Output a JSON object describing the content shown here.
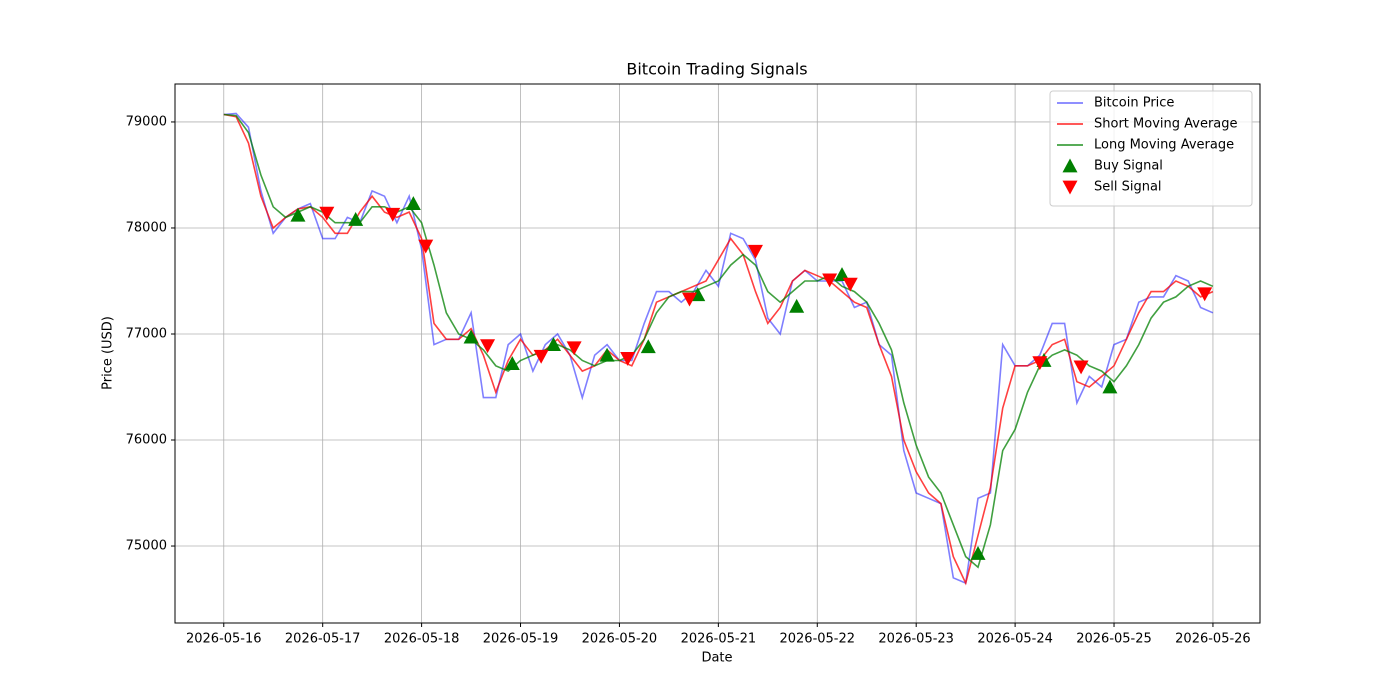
{
  "chart_data": {
    "type": "line",
    "title": "Bitcoin Trading Signals",
    "xlabel": "Date",
    "ylabel": "Price (USD)",
    "x": [
      "2026-05-16 00:00",
      "2026-05-16 03:00",
      "2026-05-16 06:00",
      "2026-05-16 09:00",
      "2026-05-16 12:00",
      "2026-05-16 15:00",
      "2026-05-16 18:00",
      "2026-05-16 21:00",
      "2026-05-17 00:00",
      "2026-05-17 03:00",
      "2026-05-17 06:00",
      "2026-05-17 09:00",
      "2026-05-17 12:00",
      "2026-05-17 15:00",
      "2026-05-17 18:00",
      "2026-05-17 21:00",
      "2026-05-18 00:00",
      "2026-05-18 03:00",
      "2026-05-18 06:00",
      "2026-05-18 09:00",
      "2026-05-18 12:00",
      "2026-05-18 15:00",
      "2026-05-18 18:00",
      "2026-05-18 21:00",
      "2026-05-19 00:00",
      "2026-05-19 03:00",
      "2026-05-19 06:00",
      "2026-05-19 09:00",
      "2026-05-19 12:00",
      "2026-05-19 15:00",
      "2026-05-19 18:00",
      "2026-05-19 21:00",
      "2026-05-20 00:00",
      "2026-05-20 03:00",
      "2026-05-20 06:00",
      "2026-05-20 09:00",
      "2026-05-20 12:00",
      "2026-05-20 15:00",
      "2026-05-20 18:00",
      "2026-05-20 21:00",
      "2026-05-21 00:00",
      "2026-05-21 03:00",
      "2026-05-21 06:00",
      "2026-05-21 09:00",
      "2026-05-21 12:00",
      "2026-05-21 15:00",
      "2026-05-21 18:00",
      "2026-05-21 21:00",
      "2026-05-22 00:00",
      "2026-05-22 03:00",
      "2026-05-22 06:00",
      "2026-05-22 09:00",
      "2026-05-22 12:00",
      "2026-05-22 15:00",
      "2026-05-22 18:00",
      "2026-05-22 21:00",
      "2026-05-23 00:00",
      "2026-05-23 03:00",
      "2026-05-23 06:00",
      "2026-05-23 09:00",
      "2026-05-23 12:00",
      "2026-05-23 15:00",
      "2026-05-23 18:00",
      "2026-05-23 21:00",
      "2026-05-24 00:00",
      "2026-05-24 03:00",
      "2026-05-24 06:00",
      "2026-05-24 09:00",
      "2026-05-24 12:00",
      "2026-05-24 15:00",
      "2026-05-24 18:00",
      "2026-05-24 21:00",
      "2026-05-25 00:00",
      "2026-05-25 03:00",
      "2026-05-25 06:00",
      "2026-05-25 09:00",
      "2026-05-25 12:00",
      "2026-05-25 15:00",
      "2026-05-25 18:00",
      "2026-05-25 21:00",
      "2026-05-26 00:00"
    ],
    "series": [
      {
        "name": "Bitcoin Price",
        "color": "blue",
        "alpha": 0.5,
        "values": [
          79070,
          79080,
          78950,
          78350,
          77950,
          78100,
          78180,
          78230,
          77900,
          77900,
          78100,
          78050,
          78350,
          78300,
          78050,
          78300,
          77800,
          76900,
          76950,
          76950,
          77200,
          76400,
          76400,
          76900,
          77000,
          76650,
          76900,
          77000,
          76800,
          76400,
          76800,
          76900,
          76750,
          76750,
          77100,
          77400,
          77400,
          77300,
          77400,
          77600,
          77450,
          77950,
          77900,
          77700,
          77150,
          77000,
          77500,
          77600,
          77500,
          77500,
          77500,
          77250,
          77300,
          76900,
          76800,
          75900,
          75500,
          75450,
          75400,
          74700,
          74650,
          75450,
          75500,
          76900,
          76700,
          76700,
          76800,
          77100,
          77100,
          76350,
          76600,
          76500,
          76900,
          76950,
          77300,
          77350,
          77350,
          77550,
          77500,
          77250,
          77200
        ]
      },
      {
        "name": "Short Moving Average",
        "color": "red",
        "alpha": 0.75,
        "values": [
          79070,
          79050,
          78800,
          78300,
          78000,
          78100,
          78180,
          78200,
          78100,
          77950,
          77950,
          78150,
          78300,
          78150,
          78100,
          78150,
          77900,
          77100,
          76950,
          76950,
          77050,
          76800,
          76450,
          76750,
          76950,
          76800,
          76850,
          76950,
          76800,
          76650,
          76700,
          76850,
          76750,
          76700,
          76950,
          77300,
          77350,
          77400,
          77450,
          77500,
          77700,
          77900,
          77750,
          77400,
          77100,
          77250,
          77500,
          77600,
          77550,
          77500,
          77400,
          77300,
          77250,
          76900,
          76600,
          76000,
          75700,
          75500,
          75400,
          74900,
          74650,
          75100,
          75550,
          76300,
          76700,
          76700,
          76750,
          76900,
          76950,
          76550,
          76500,
          76600,
          76700,
          76950,
          77200,
          77400,
          77400,
          77500,
          77450,
          77350,
          77400
        ]
      },
      {
        "name": "Long Moving Average",
        "color": "green",
        "alpha": 0.75,
        "values": [
          79070,
          79060,
          78900,
          78500,
          78200,
          78100,
          78150,
          78200,
          78150,
          78050,
          78050,
          78050,
          78200,
          78200,
          78150,
          78200,
          78050,
          77650,
          77200,
          77000,
          76950,
          76850,
          76700,
          76650,
          76750,
          76800,
          76850,
          76900,
          76850,
          76750,
          76700,
          76750,
          76750,
          76800,
          76950,
          77200,
          77350,
          77400,
          77400,
          77450,
          77500,
          77650,
          77750,
          77650,
          77400,
          77300,
          77400,
          77500,
          77500,
          77550,
          77450,
          77400,
          77300,
          77100,
          76850,
          76350,
          75950,
          75650,
          75500,
          75200,
          74900,
          74800,
          75200,
          75900,
          76100,
          76450,
          76700,
          76800,
          76850,
          76800,
          76700,
          76650,
          76550,
          76700,
          76900,
          77150,
          77300,
          77350,
          77450,
          77500,
          77450
        ]
      },
      {
        "name": "Buy Signal",
        "type": "scatter",
        "marker": "^",
        "color": "green",
        "x": [
          "2026-05-16 18:00",
          "2026-05-17 08:00",
          "2026-05-17 22:00",
          "2026-05-18 12:00",
          "2026-05-18 22:00",
          "2026-05-19 08:00",
          "2026-05-19 21:00",
          "2026-05-20 07:00",
          "2026-05-20 19:00",
          "2026-05-21 19:00",
          "2026-05-22 06:00",
          "2026-05-23 15:00",
          "2026-05-24 07:00",
          "2026-05-24 23:00"
        ],
        "values": [
          78120,
          78080,
          78230,
          76970,
          76720,
          76900,
          76800,
          76880,
          77370,
          77260,
          77560,
          74930,
          76750,
          76500
        ]
      },
      {
        "name": "Sell Signal",
        "type": "scatter",
        "marker": "v",
        "color": "red",
        "x": [
          "2026-05-17 01:00",
          "2026-05-17 17:00",
          "2026-05-18 01:00",
          "2026-05-18 16:00",
          "2026-05-19 05:00",
          "2026-05-19 13:00",
          "2026-05-20 02:00",
          "2026-05-20 17:00",
          "2026-05-21 09:00",
          "2026-05-22 03:00",
          "2026-05-22 08:00",
          "2026-05-24 06:00",
          "2026-05-24 16:00",
          "2026-05-25 22:00"
        ],
        "values": [
          78140,
          78130,
          77830,
          76890,
          76790,
          76870,
          76770,
          77330,
          77780,
          77510,
          77470,
          76730,
          76690,
          77380
        ]
      }
    ],
    "xlim": [
      "2026-05-15 12:10",
      "2026-05-26 11:25"
    ],
    "xticks": [
      "2026-05-16",
      "2026-05-17",
      "2026-05-18",
      "2026-05-19",
      "2026-05-20",
      "2026-05-21",
      "2026-05-22",
      "2026-05-23",
      "2026-05-24",
      "2026-05-25",
      "2026-05-26"
    ],
    "ylim": [
      74274,
      79358
    ],
    "yticks": [
      75000,
      76000,
      77000,
      78000,
      79000
    ],
    "grid": true,
    "legend": "upper right"
  }
}
